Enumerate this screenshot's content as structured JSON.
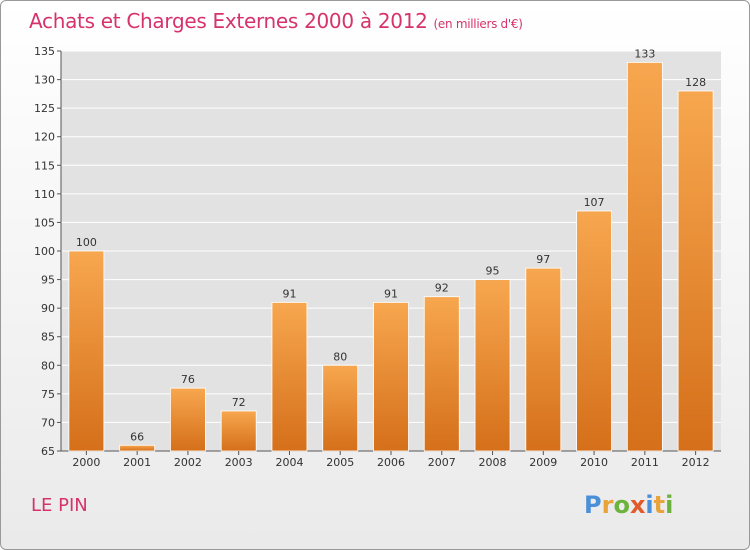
{
  "header": {
    "title": "Achats et Charges Externes 2000 à 2012",
    "subtitle": "(en milliers d'€)"
  },
  "footer": {
    "place": "LE PIN",
    "logo_letters": [
      "P",
      "r",
      "o",
      "x",
      "i",
      "t",
      "i"
    ],
    "logo_colors": [
      "#4a90d9",
      "#e8a33a",
      "#6cb33e",
      "#e05a2b",
      "#4a90d9",
      "#e8a33a",
      "#6cb33e"
    ]
  },
  "colors": {
    "bar_top": "#f7a74f",
    "bar_bottom": "#d56f1a",
    "accent": "#d6336c"
  },
  "chart_data": {
    "type": "bar",
    "title": "Achats et Charges Externes 2000 à 2012",
    "subtitle": "(en milliers d'€)",
    "categories": [
      "2000",
      "2001",
      "2002",
      "2003",
      "2004",
      "2005",
      "2006",
      "2007",
      "2008",
      "2009",
      "2010",
      "2011",
      "2012"
    ],
    "values": [
      100,
      66,
      76,
      72,
      91,
      80,
      91,
      92,
      95,
      97,
      107,
      133,
      128
    ],
    "ylim": [
      65,
      135
    ],
    "yticks": [
      65,
      70,
      75,
      80,
      85,
      90,
      95,
      100,
      105,
      110,
      115,
      120,
      125,
      130,
      135
    ],
    "grid": true
  }
}
